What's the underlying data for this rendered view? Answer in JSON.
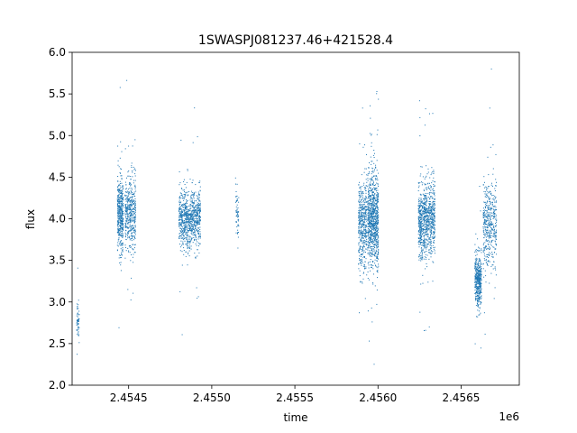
{
  "chart_data": {
    "type": "scatter",
    "title": "1SWASPJ081237.46+421528.4",
    "xlabel": "time",
    "ylabel": "flux",
    "offset_label": "1e6",
    "xlim": [
      2454160,
      2456850
    ],
    "ylim": [
      2.0,
      6.0
    ],
    "x_ticks": [
      2454500,
      2455000,
      2455500,
      2456000,
      2456500
    ],
    "x_tick_labels": [
      "2.4545",
      "2.4550",
      "2.4555",
      "2.4560",
      "2.4565"
    ],
    "y_ticks": [
      2.0,
      2.5,
      3.0,
      3.5,
      4.0,
      4.5,
      5.0,
      5.5,
      6.0
    ],
    "y_tick_labels": [
      "2.0",
      "2.5",
      "3.0",
      "3.5",
      "4.0",
      "4.5",
      "5.0",
      "5.5",
      "6.0"
    ],
    "grid": false,
    "marker_color": "#1f77b4",
    "clusters": [
      {
        "x_start": 2454185,
        "x_end": 2454200,
        "y_center": 2.8,
        "y_spread": 0.25,
        "density": "sparse"
      },
      {
        "x_start": 2454430,
        "x_end": 2454465,
        "y_center": 4.05,
        "y_spread": 0.4,
        "density": "medium"
      },
      {
        "x_start": 2454475,
        "x_end": 2454540,
        "y_center": 4.05,
        "y_spread": 0.45,
        "density": "medium"
      },
      {
        "x_start": 2454800,
        "x_end": 2454930,
        "y_center": 4.0,
        "y_spread": 0.35,
        "density": "dense"
      },
      {
        "x_start": 2455140,
        "x_end": 2455160,
        "y_center": 4.05,
        "y_spread": 0.3,
        "density": "sparse"
      },
      {
        "x_start": 2455880,
        "x_end": 2455930,
        "y_center": 3.95,
        "y_spread": 0.5,
        "density": "medium"
      },
      {
        "x_start": 2455935,
        "x_end": 2456000,
        "y_center": 4.0,
        "y_spread": 0.55,
        "density": "dense"
      },
      {
        "x_start": 2456240,
        "x_end": 2456340,
        "y_center": 4.0,
        "y_spread": 0.45,
        "density": "dense"
      },
      {
        "x_start": 2456580,
        "x_end": 2456620,
        "y_center": 3.25,
        "y_spread": 0.3,
        "density": "medium"
      },
      {
        "x_start": 2456630,
        "x_end": 2456710,
        "y_center": 3.95,
        "y_spread": 0.5,
        "density": "medium"
      }
    ]
  }
}
